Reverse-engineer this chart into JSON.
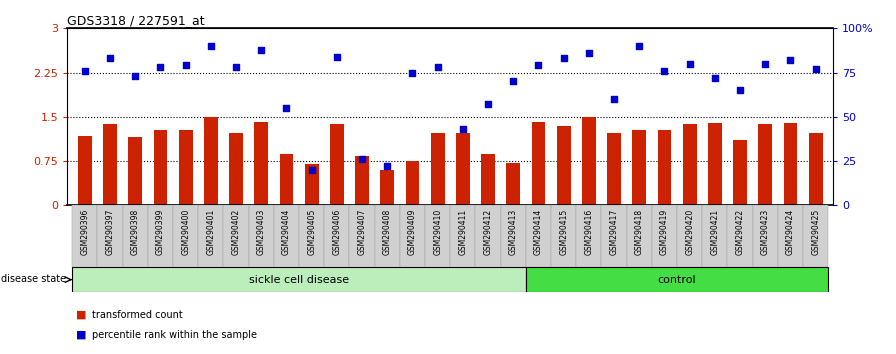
{
  "title": "GDS3318 / 227591_at",
  "samples": [
    "GSM290396",
    "GSM290397",
    "GSM290398",
    "GSM290399",
    "GSM290400",
    "GSM290401",
    "GSM290402",
    "GSM290403",
    "GSM290404",
    "GSM290405",
    "GSM290406",
    "GSM290407",
    "GSM290408",
    "GSM290409",
    "GSM290410",
    "GSM290411",
    "GSM290412",
    "GSM290413",
    "GSM290414",
    "GSM290415",
    "GSM290416",
    "GSM290417",
    "GSM290418",
    "GSM290419",
    "GSM290420",
    "GSM290421",
    "GSM290422",
    "GSM290423",
    "GSM290424",
    "GSM290425"
  ],
  "bar_values": [
    1.18,
    1.38,
    1.15,
    1.28,
    1.27,
    1.5,
    1.22,
    1.42,
    0.87,
    0.7,
    1.37,
    0.83,
    0.6,
    0.75,
    1.22,
    1.22,
    0.87,
    0.72,
    1.42,
    1.35,
    1.5,
    1.23,
    1.28,
    1.27,
    1.37,
    1.4,
    1.1,
    1.37,
    1.4,
    1.22
  ],
  "scatter_values": [
    76,
    83,
    73,
    78,
    79,
    90,
    78,
    88,
    55,
    20,
    84,
    26,
    22,
    75,
    78,
    43,
    57,
    70,
    79,
    83,
    86,
    60,
    90,
    76,
    80,
    72,
    65,
    80,
    82,
    77
  ],
  "sickle_count": 18,
  "control_count": 12,
  "bar_color": "#cc2200",
  "scatter_color": "#0000cc",
  "sickle_bg": "#bbeebb",
  "control_bg": "#44dd44",
  "tick_bg": "#d0d0d0",
  "yticks_left": [
    0,
    0.75,
    1.5,
    2.25,
    3
  ],
  "ytick_labels_left": [
    "0",
    "0.75",
    "1.5",
    "2.25",
    "3"
  ],
  "yticks_right": [
    0,
    25,
    50,
    75,
    100
  ],
  "ytick_labels_right": [
    "0",
    "25",
    "50",
    "75",
    "100%"
  ],
  "hlines": [
    0.75,
    1.5,
    2.25
  ],
  "ylim_left": [
    0,
    3
  ],
  "ylim_right": [
    0,
    100
  ]
}
